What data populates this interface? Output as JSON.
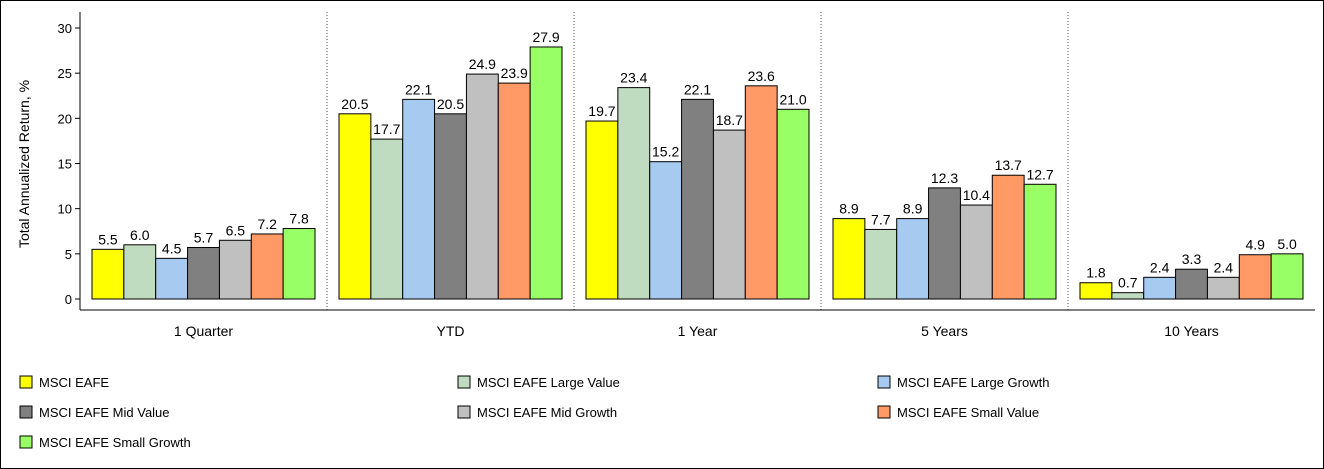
{
  "chart_data": {
    "type": "bar",
    "ylabel": "Total Annualized Return, %",
    "ylim": [
      0,
      30
    ],
    "yticks": [
      0,
      5,
      10,
      15,
      20,
      25,
      30
    ],
    "grid": false,
    "legend_position": "bottom",
    "categories": [
      "1 Quarter",
      "YTD",
      "1 Year",
      "5 Years",
      "10 Years"
    ],
    "series": [
      {
        "name": "MSCI EAFE",
        "color": "#FFFF00",
        "values": [
          5.5,
          20.5,
          19.7,
          8.9,
          1.8
        ],
        "labels": [
          "5.5",
          "20.5",
          "19.7",
          "8.9",
          "1.8"
        ]
      },
      {
        "name": "MSCI EAFE Large Value",
        "color": "#C0DCC0",
        "values": [
          6.0,
          17.7,
          23.4,
          7.7,
          0.7
        ],
        "labels": [
          "6.0",
          "17.7",
          "23.4",
          "7.7",
          "0.7"
        ]
      },
      {
        "name": "MSCI EAFE Large Growth",
        "color": "#A6CAF0",
        "values": [
          4.5,
          22.1,
          15.2,
          8.9,
          2.4
        ],
        "labels": [
          "4.5",
          "22.1",
          "15.2",
          "8.9",
          "2.4"
        ]
      },
      {
        "name": "MSCI EAFE Mid Value",
        "color": "#808080",
        "values": [
          5.7,
          20.5,
          22.1,
          12.3,
          3.3
        ],
        "labels": [
          "5.7",
          "20.5",
          "22.1",
          "12.3",
          "3.3"
        ]
      },
      {
        "name": "MSCI EAFE Mid Growth",
        "color": "#C0C0C0",
        "values": [
          6.5,
          24.9,
          18.7,
          10.4,
          2.4
        ],
        "labels": [
          "6.5",
          "24.9",
          "18.7",
          "10.4",
          "2.4"
        ]
      },
      {
        "name": "MSCI EAFE Small Value",
        "color": "#FF9966",
        "values": [
          7.2,
          23.9,
          23.6,
          13.7,
          4.9
        ],
        "labels": [
          "7.2",
          "23.9",
          "23.6",
          "13.7",
          "4.9"
        ]
      },
      {
        "name": "MSCI EAFE Small Growth",
        "color": "#99FF66",
        "values": [
          7.8,
          27.9,
          21.0,
          12.7,
          5.0
        ],
        "labels": [
          "7.8",
          "27.9",
          "21.0",
          "12.7",
          "5.0"
        ]
      }
    ]
  }
}
